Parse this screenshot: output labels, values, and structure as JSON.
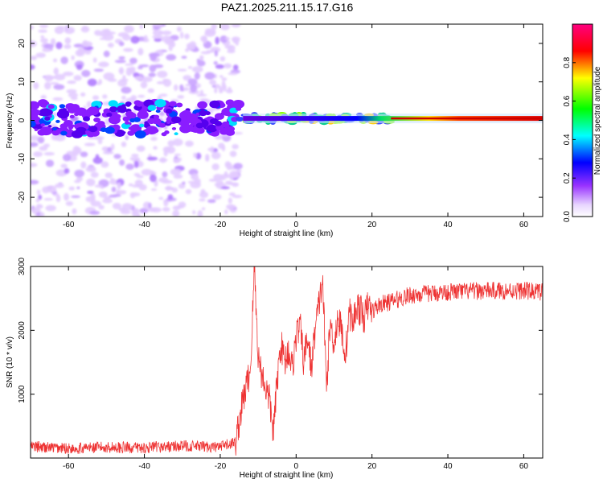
{
  "title": "PAZ1.2025.211.15.17.G16",
  "chart_data": [
    {
      "type": "heatmap",
      "xlabel": "Height of straight line (km)",
      "ylabel": "Frequency (Hz)",
      "xlim": [
        -70,
        65
      ],
      "ylim": [
        -25,
        25
      ],
      "xticks": [
        -60,
        -40,
        -20,
        0,
        20,
        40,
        60
      ],
      "yticks": [
        -20,
        -10,
        0,
        10,
        20
      ],
      "colorbar": {
        "label": "Normalized spectral amplitude",
        "range": [
          0.0,
          1.0
        ],
        "ticks": [
          "0.0",
          "0.2",
          "0.4",
          "0.6",
          "0.8"
        ],
        "tick_values": [
          0.0,
          0.2,
          0.4,
          0.6,
          0.8
        ]
      },
      "features": [
        {
          "description": "diffuse noise",
          "x_range": [
            -70,
            -15
          ],
          "freq_range": [
            -25,
            25
          ],
          "amplitude": 0.15
        },
        {
          "description": "main band",
          "x_range": [
            -70,
            65
          ],
          "freq_center": 0.5,
          "amplitude_left": 0.2,
          "amplitude_right": 1.0
        }
      ]
    },
    {
      "type": "line",
      "xlabel": "Height of straight line (km)",
      "ylabel": "SNR (10 * v/v)",
      "xlim": [
        -70,
        65
      ],
      "ylim": [
        0,
        3000
      ],
      "xticks": [
        -60,
        -40,
        -20,
        0,
        20,
        40,
        60
      ],
      "yticks": [
        1000,
        2000,
        3000
      ],
      "series": [
        {
          "color": "#ee3333",
          "x": [
            -70,
            -60,
            -50,
            -40,
            -30,
            -20,
            -16,
            -14,
            -12,
            -11,
            -10,
            -9,
            -8,
            -7,
            -6,
            -5,
            -4,
            -3,
            -2,
            -1,
            0,
            1,
            2,
            3,
            4,
            5,
            6,
            7,
            8,
            9,
            10,
            11,
            12,
            13,
            14,
            15,
            16,
            17,
            18,
            19,
            20,
            22,
            25,
            30,
            40,
            50,
            60,
            65
          ],
          "y": [
            180,
            150,
            170,
            160,
            190,
            170,
            250,
            900,
            1400,
            3000,
            1600,
            1300,
            1100,
            900,
            400,
            1200,
            1800,
            1500,
            1700,
            1400,
            1900,
            2100,
            1500,
            1900,
            1400,
            2000,
            2400,
            2800,
            1100,
            2100,
            1800,
            2200,
            2000,
            1600,
            2300,
            2100,
            2400,
            2300,
            2200,
            2400,
            2300,
            2400,
            2450,
            2550,
            2600,
            2620,
            2620,
            2600
          ]
        }
      ]
    }
  ]
}
